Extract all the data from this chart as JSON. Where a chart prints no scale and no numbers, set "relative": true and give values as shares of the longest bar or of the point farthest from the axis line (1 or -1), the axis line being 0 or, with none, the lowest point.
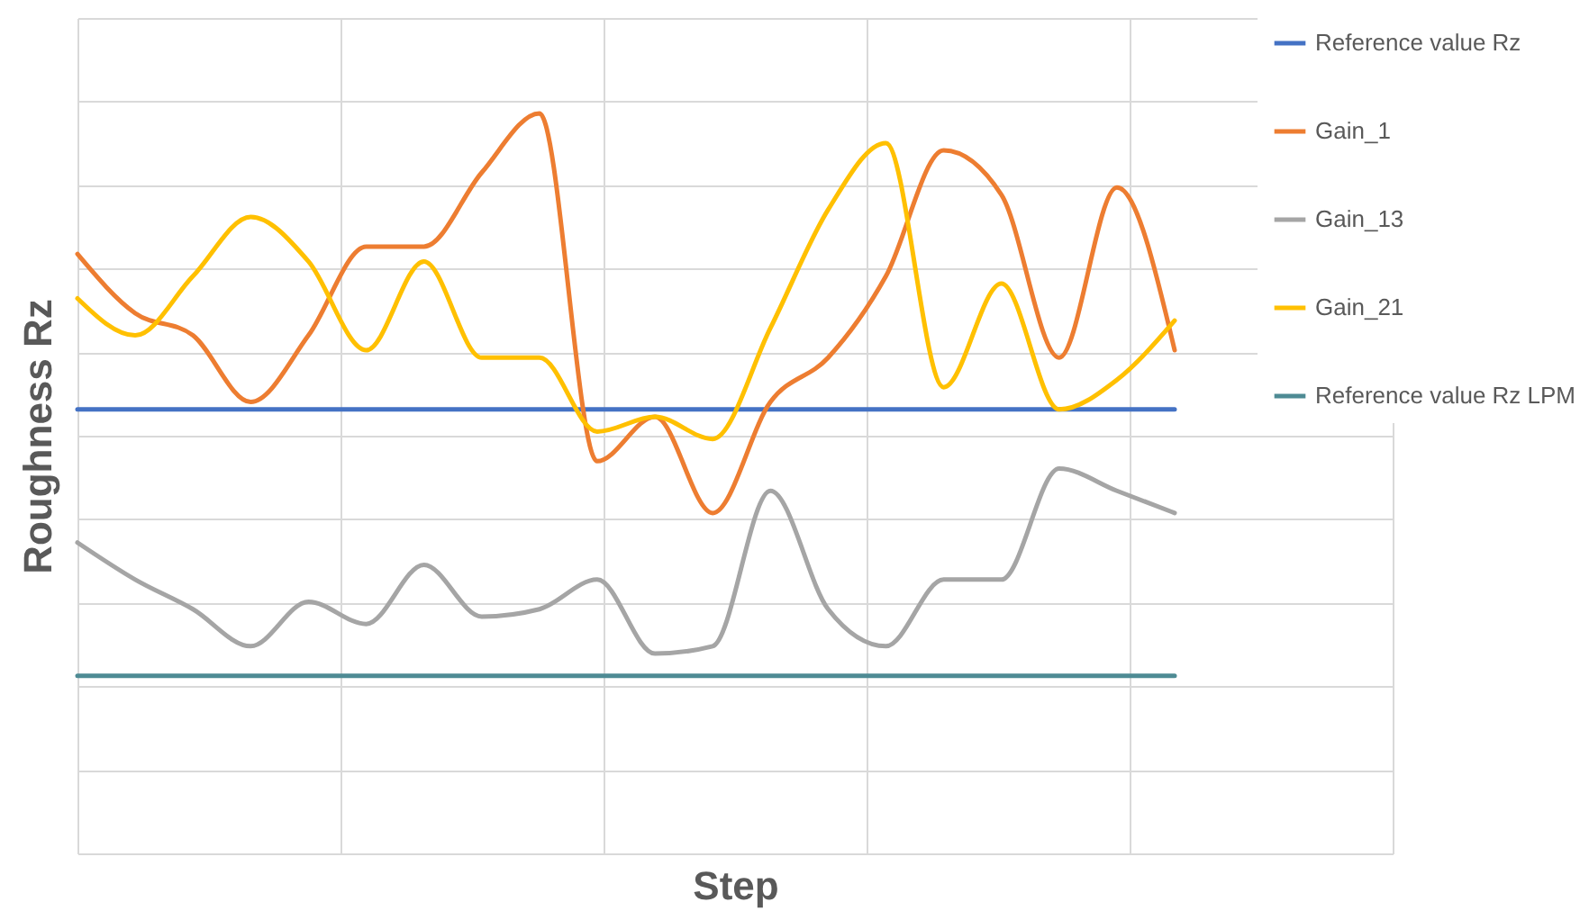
{
  "chart_data": {
    "type": "line",
    "relative": true,
    "xlabel": "Step",
    "ylabel": "Roughness Rz",
    "categories": [
      null,
      null,
      null,
      null,
      null,
      null,
      null,
      null,
      null,
      null,
      null,
      null,
      null,
      null,
      null,
      null,
      null,
      null,
      null,
      null
    ],
    "series": [
      {
        "name": "Reference value Rz",
        "color": "#4472c4",
        "values": [
          0.6,
          0.6,
          0.6,
          0.6,
          0.6,
          0.6,
          0.6,
          0.6,
          0.6,
          0.6,
          0.6,
          0.6,
          0.6,
          0.6,
          0.6,
          0.6,
          0.6,
          0.6,
          0.6,
          0.6
        ]
      },
      {
        "name": "Gain_1",
        "color": "#ed7d31",
        "values": [
          0.81,
          0.73,
          0.7,
          0.61,
          0.7,
          0.82,
          0.82,
          0.92,
          1.0,
          0.53,
          0.59,
          0.46,
          0.61,
          0.67,
          0.78,
          0.95,
          0.89,
          0.67,
          0.9,
          0.68
        ]
      },
      {
        "name": "Gain_13",
        "color": "#a5a5a5",
        "values": [
          0.42,
          0.37,
          0.33,
          0.28,
          0.34,
          0.31,
          0.39,
          0.32,
          0.33,
          0.37,
          0.27,
          0.28,
          0.49,
          0.33,
          0.28,
          0.37,
          0.37,
          0.52,
          0.49,
          0.46
        ]
      },
      {
        "name": "Gain_21",
        "color": "#ffc000",
        "values": [
          0.75,
          0.7,
          0.78,
          0.86,
          0.8,
          0.68,
          0.8,
          0.67,
          0.67,
          0.57,
          0.59,
          0.56,
          0.71,
          0.87,
          0.96,
          0.63,
          0.77,
          0.6,
          0.64,
          0.72
        ]
      },
      {
        "name": "Reference value Rz LPM",
        "color": "#4e8b94",
        "values": [
          0.24,
          0.24,
          0.24,
          0.24,
          0.24,
          0.24,
          0.24,
          0.24,
          0.24,
          0.24,
          0.24,
          0.24,
          0.24,
          0.24,
          0.24,
          0.24,
          0.24,
          0.24,
          0.24,
          0.24
        ]
      }
    ],
    "grid": true,
    "legend": "right",
    "marker": "none",
    "line_style": "solid"
  }
}
